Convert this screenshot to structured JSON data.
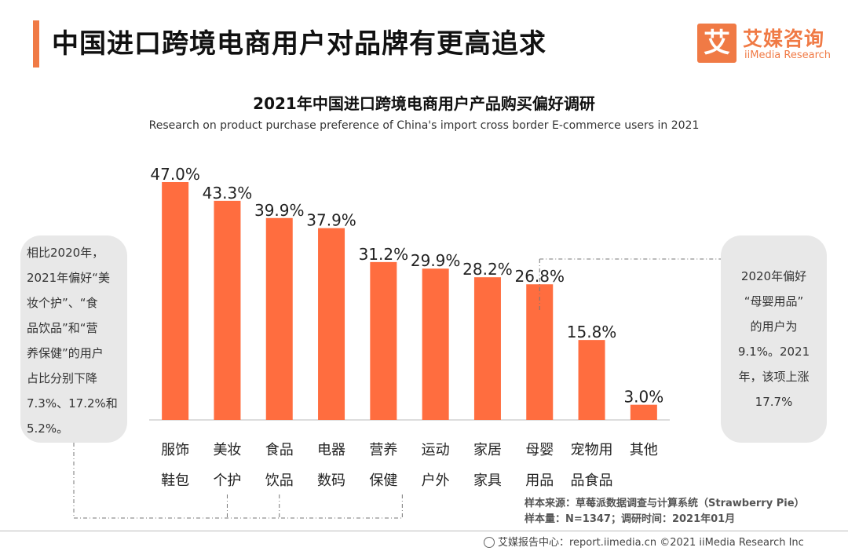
{
  "header": {
    "title": "中国进口跨境电商用户对品牌有更高追求",
    "logo_icon_char": "艾",
    "logo_cn": "艾媒咨询",
    "logo_en": "iiMedia Research"
  },
  "chart_data": {
    "type": "bar",
    "title": "2021年中国进口跨境电商用户产品购买偏好调研",
    "subtitle": "Research on product purchase preference of China's import cross border E-commerce users in 2021",
    "categories": [
      [
        "服饰",
        "鞋包"
      ],
      [
        "美妆",
        "个护"
      ],
      [
        "食品",
        "饮品"
      ],
      [
        "电器",
        "数码"
      ],
      [
        "营养",
        "保健"
      ],
      [
        "运动",
        "户外"
      ],
      [
        "家居",
        "家具"
      ],
      [
        "母婴",
        "用品"
      ],
      [
        "宠物用",
        "品食品"
      ],
      [
        "其他"
      ]
    ],
    "values": [
      47.0,
      43.3,
      39.9,
      37.9,
      31.2,
      29.9,
      28.2,
      26.8,
      15.8,
      3.0
    ],
    "value_labels": [
      "47.0%",
      "43.3%",
      "39.9%",
      "37.9%",
      "31.2%",
      "29.9%",
      "28.2%",
      "26.8%",
      "15.8%",
      "3.0%"
    ],
    "ylim": [
      0,
      47.0
    ],
    "bar_color": "#ff6d3f",
    "xlabel": "",
    "ylabel": ""
  },
  "annotations": {
    "left_lines": [
      "相比2020年，",
      "2021年偏好“美",
      "妆个护”、“食",
      "品饮品”和“营",
      "养保健”的用户",
      "占比分别下降",
      "7.3%、17.2%和",
      "5.2%。"
    ],
    "right_lines": [
      "2020年偏好",
      "“母婴用品”",
      "的用户为",
      "9.1%。2021",
      "年，该项上涨",
      "17.7%"
    ]
  },
  "source": {
    "line1": "样本来源：草莓派数据调查与计算系统（Strawberry Pie）",
    "line2": "样本量：N=1347；调研时间：2021年01月"
  },
  "footer": {
    "text": "艾媒报告中心：report.iimedia.cn  ©2021  iiMedia Research Inc"
  },
  "colors": {
    "accent": "#f07a45",
    "bar": "#ff6d3f",
    "bubble": "#e8e8e8"
  }
}
